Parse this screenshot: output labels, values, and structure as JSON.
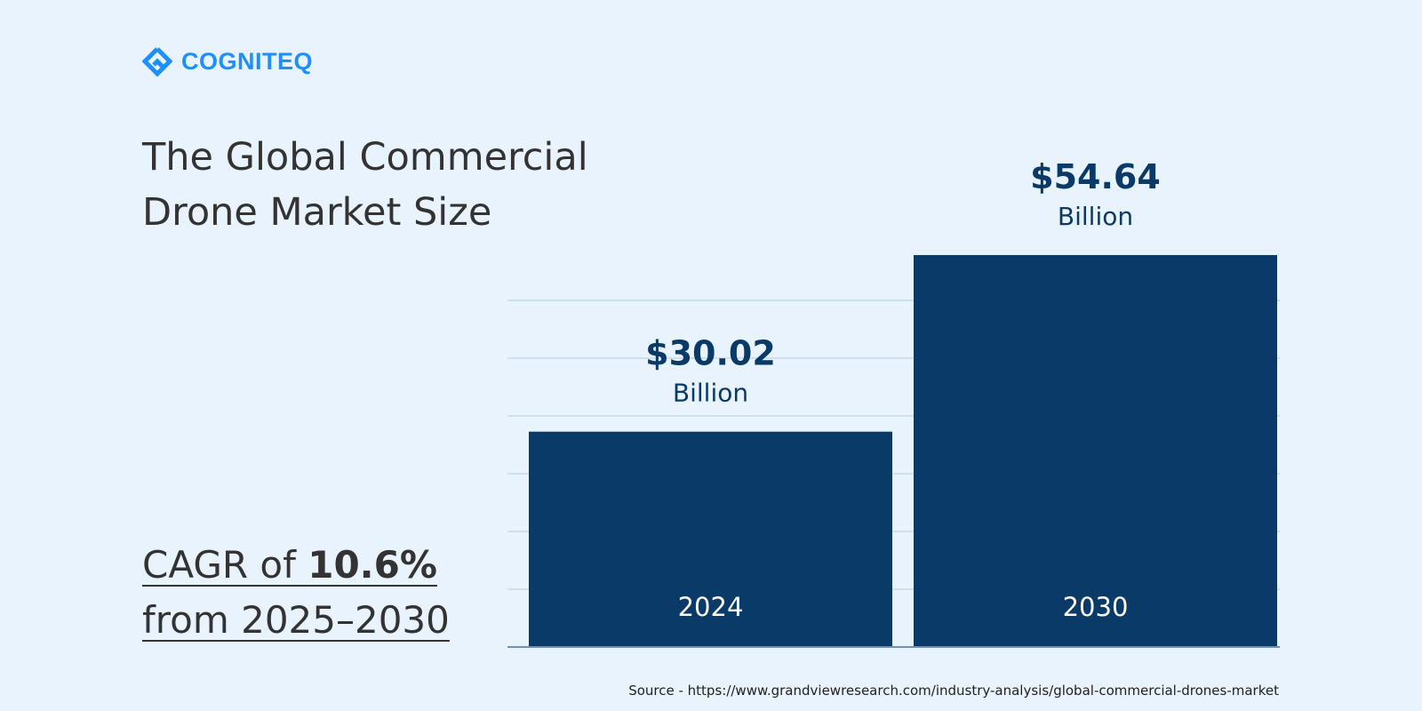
{
  "brand": {
    "name": "COGNITEQ",
    "color": "#1e8fff"
  },
  "title_lines": [
    "The Global Commercial",
    "Drone Market Size"
  ],
  "cagr": {
    "prefix": "CAGR of ",
    "value": "10.6%",
    "period": "from 2025–2030"
  },
  "source": "Source - https://www.grandviewresearch.com/industry-analysis/global-commercial-drones-market",
  "chart_data": {
    "type": "bar",
    "categories": [
      "2024",
      "2030"
    ],
    "values": [
      30.02,
      54.64
    ],
    "data_labels": [
      "$30.02",
      "$54.64"
    ],
    "unit_label": "Billion",
    "ylim": [
      0,
      54.64
    ],
    "grid": true,
    "bar_color": "#0a3a68"
  }
}
